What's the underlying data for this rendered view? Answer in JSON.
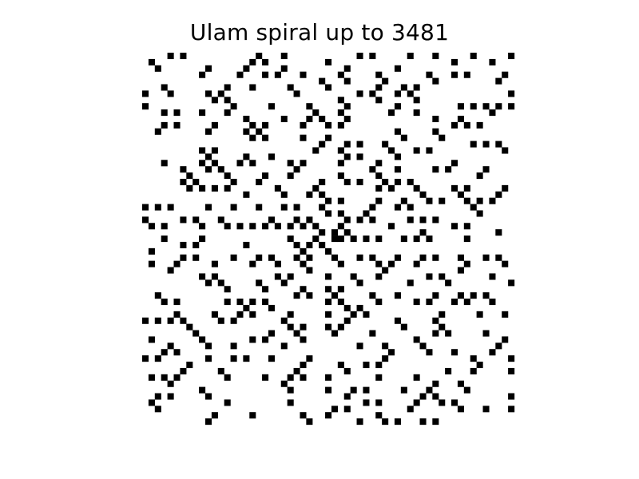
{
  "chart_data": {
    "type": "heatmap",
    "title": "Ulam spiral up to 3481",
    "max_value": 3481,
    "grid_size": 59,
    "rule": "cell is dark when its spiral index is prime",
    "axes_visible": false,
    "grid": false,
    "colors": {
      "prime": "#000000",
      "non_prime": "#ffffff"
    }
  }
}
